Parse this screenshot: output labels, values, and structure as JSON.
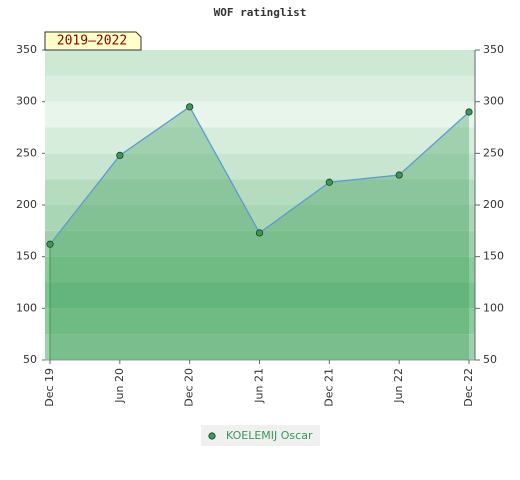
{
  "chart_data": {
    "type": "area",
    "title": "WOF ratinglist",
    "annotation": "2019–2022",
    "categories": [
      "Dec 19",
      "Jun 20",
      "Dec 20",
      "Jun 21",
      "Dec 21",
      "Jun 22",
      "Dec 22"
    ],
    "series": [
      {
        "name": "KOELEMIJ Oscar",
        "color": "#3a9a55",
        "line_color": "#5b9bd5",
        "values": [
          162,
          248,
          295,
          173,
          222,
          229,
          290
        ]
      }
    ],
    "ylim": [
      50,
      350
    ],
    "yticks": [
      50,
      100,
      150,
      200,
      250,
      300,
      350
    ],
    "y2lim": [
      50,
      350
    ],
    "y2ticks": [
      50,
      100,
      150,
      200,
      250,
      300,
      350
    ]
  }
}
